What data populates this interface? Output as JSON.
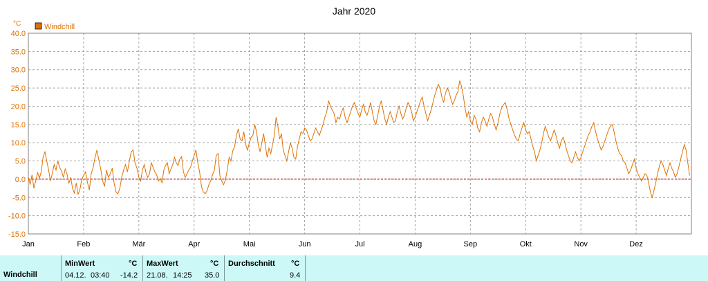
{
  "chart_data": {
    "type": "line",
    "title": "Jahr 2020",
    "unit": "°C",
    "legend": {
      "label": "Windchill",
      "color": "#e07000",
      "placement": "top-left"
    },
    "ylim": [
      -15,
      40
    ],
    "yticks": [
      "40.0",
      "35.0",
      "30.0",
      "25.0",
      "20.0",
      "15.0",
      "10.0",
      "5.0",
      "0.0",
      "-5.0",
      "-10.0",
      "-15.0"
    ],
    "xticks": [
      "Jan",
      "Feb",
      "Mär",
      "Apr",
      "Mai",
      "Jun",
      "Jul",
      "Aug",
      "Sep",
      "Okt",
      "Nov",
      "Dez"
    ],
    "grid": true,
    "zero_line": true,
    "series": [
      {
        "name": "Windchill",
        "color": "#e07000",
        "points_per_month": [
          [
            0.5,
            -1.5,
            1.2,
            -2.5,
            -0.5,
            1.8,
            0.3,
            2.0,
            6.0,
            7.5,
            5.0,
            2.5,
            -0.5,
            1.5,
            4.0,
            2.5,
            5.0,
            3.2,
            2.2,
            0.5,
            2.8,
            1.5,
            -1.2,
            0.5,
            -2.5,
            -3.8,
            -1.0,
            -4.2,
            -2.8,
            0.0
          ],
          [
            1.0,
            2.0,
            -0.8,
            -3.0,
            1.5,
            3.2,
            6.0,
            8.0,
            5.2,
            2.8,
            -0.5,
            -2.0,
            2.5,
            0.5,
            1.5,
            3.0,
            -1.0,
            -3.5,
            -4.0,
            -2.5,
            0.5,
            2.5,
            4.0,
            2.0,
            5.0,
            7.5,
            8.0,
            4.5,
            3.0
          ],
          [
            0.5,
            -0.5,
            2.5,
            4.0,
            1.8,
            0.5,
            1.5,
            4.5,
            3.2,
            2.0,
            1.2,
            -0.5,
            0.2,
            -1.0,
            2.5,
            3.8,
            4.5,
            1.5,
            2.8,
            4.0,
            6.0,
            4.5,
            3.8,
            5.5,
            6.2,
            2.0,
            0.5,
            1.5,
            2.5,
            3.2,
            5.0
          ],
          [
            6.5,
            8.0,
            4.5,
            2.0,
            -2.0,
            -3.5,
            -4.0,
            -3.2,
            -1.5,
            -0.5,
            1.2,
            2.5,
            6.5,
            7.0,
            1.0,
            -0.5,
            -1.5,
            -0.2,
            2.5,
            6.0,
            5.0,
            7.8,
            9.0,
            12.0,
            13.8,
            11.0,
            10.5,
            13.0,
            9.5,
            8.0
          ],
          [
            10.0,
            11.5,
            12.0,
            15.0,
            13.0,
            9.5,
            7.5,
            10.0,
            12.5,
            9.0,
            6.0,
            8.5,
            7.0,
            9.5,
            12.0,
            17.0,
            14.5,
            11.0,
            12.5,
            8.0,
            6.5,
            5.0,
            7.5,
            10.0,
            8.5,
            6.0,
            5.5,
            9.0,
            11.0,
            13.0,
            12.5
          ],
          [
            14.0,
            13.5,
            12.0,
            10.5,
            11.0,
            12.5,
            14.0,
            13.0,
            12.0,
            13.5,
            15.0,
            17.0,
            18.5,
            21.5,
            20.0,
            19.0,
            18.0,
            15.5,
            17.0,
            16.5,
            18.5,
            19.5,
            17.0,
            15.5,
            17.0,
            18.5,
            20.0,
            21.0,
            19.5,
            18.0
          ],
          [
            17.0,
            19.0,
            20.5,
            18.5,
            17.5,
            19.0,
            21.0,
            18.5,
            16.0,
            15.0,
            17.5,
            20.0,
            21.5,
            19.0,
            16.5,
            15.0,
            17.0,
            18.5,
            17.0,
            15.5,
            16.0,
            18.5,
            20.0,
            18.0,
            16.5,
            17.5,
            19.5,
            21.0,
            20.0,
            18.5,
            16.0
          ],
          [
            17.0,
            18.5,
            20.0,
            21.5,
            22.5,
            20.0,
            18.0,
            16.0,
            17.5,
            19.0,
            21.0,
            23.0,
            24.5,
            26.0,
            25.0,
            22.5,
            21.0,
            23.5,
            25.0,
            24.0,
            22.0,
            20.5,
            21.5,
            23.0,
            24.0,
            27.0,
            25.5,
            23.0,
            19.5,
            17.0,
            18.5
          ],
          [
            16.0,
            15.0,
            17.5,
            16.5,
            14.0,
            13.0,
            15.5,
            17.0,
            16.0,
            14.5,
            16.5,
            18.0,
            17.0,
            15.0,
            13.5,
            15.5,
            18.0,
            19.5,
            20.5,
            21.0,
            19.0,
            16.5,
            15.0,
            13.5,
            12.0,
            11.0,
            10.5,
            12.5,
            14.0,
            15.5
          ],
          [
            13.5,
            12.5,
            13.0,
            11.0,
            9.0,
            7.5,
            5.0,
            6.5,
            8.0,
            10.0,
            12.5,
            14.5,
            13.0,
            11.5,
            10.5,
            12.0,
            13.5,
            12.0,
            10.0,
            8.5,
            10.5,
            11.5,
            10.0,
            8.0,
            6.5,
            5.0,
            4.5,
            6.0,
            7.5,
            6.0,
            5.0
          ],
          [
            6.0,
            7.5,
            9.0,
            10.5,
            12.0,
            13.0,
            14.5,
            15.5,
            13.0,
            11.0,
            9.5,
            8.0,
            9.0,
            10.5,
            12.0,
            13.5,
            14.5,
            15.0,
            13.0,
            10.5,
            8.5,
            7.0,
            6.5,
            5.0,
            4.5,
            3.0,
            1.5,
            2.5,
            4.0,
            5.5
          ],
          [
            3.0,
            1.5,
            0.5,
            -0.5,
            0.5,
            1.5,
            1.0,
            -1.0,
            -3.5,
            -5.0,
            -3.0,
            -1.0,
            1.5,
            3.5,
            5.0,
            4.0,
            2.5,
            1.0,
            3.0,
            4.5,
            3.0,
            2.0,
            0.5,
            1.5,
            3.5,
            5.5,
            7.5,
            9.5,
            8.0,
            4.5,
            1.0
          ]
        ]
      }
    ],
    "stats": {
      "row_label": "Windchill",
      "min": {
        "header": "MinWert",
        "unit": "°C",
        "date": "04.12.",
        "time": "03:40",
        "value": "-14.2"
      },
      "max": {
        "header": "MaxWert",
        "unit": "°C",
        "date": "21.08.",
        "time": "14:25",
        "value": "35.0"
      },
      "avg": {
        "header": "Durchschnitt",
        "unit": "°C",
        "value": "9.4"
      }
    }
  }
}
